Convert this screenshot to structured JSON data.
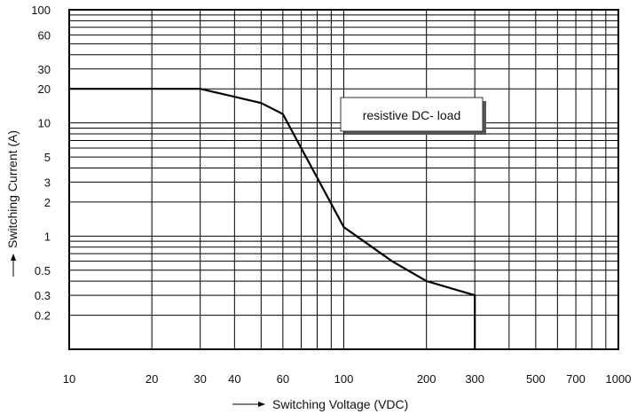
{
  "chart_data": {
    "type": "line",
    "xlabel": "Switching Voltage (VDC)",
    "ylabel": "Switching Current (A)",
    "xscale": "log",
    "yscale": "log",
    "xlim": [
      10,
      1000
    ],
    "ylim": [
      0.1,
      100
    ],
    "grid": true,
    "x_tick_labels": [
      "10",
      "20",
      "30",
      "40",
      "60",
      "100",
      "200",
      "300",
      "500",
      "700",
      "1000"
    ],
    "y_tick_labels": [
      "100",
      "60",
      "30",
      "20",
      "10",
      "5",
      "3",
      "2",
      "1",
      "0.5",
      "0.3",
      "0.2"
    ],
    "annotation": "resistive DC- load",
    "series": [
      {
        "x": [
          10,
          30,
          50,
          60,
          100,
          150,
          200,
          300,
          300
        ],
        "y": [
          20,
          20,
          15,
          12,
          1.2,
          0.6,
          0.4,
          0.3,
          0.1
        ]
      }
    ]
  }
}
